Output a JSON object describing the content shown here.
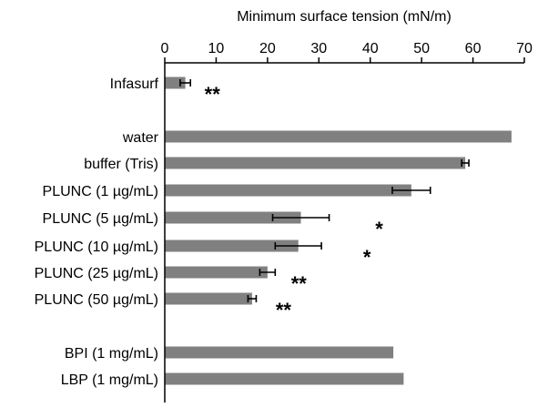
{
  "chart_data": {
    "type": "bar",
    "orientation": "horizontal",
    "xlabel": "Minimum surface tension (mN/m)",
    "xlim": [
      0,
      70
    ],
    "xticks": [
      0,
      10,
      20,
      30,
      40,
      50,
      60,
      70
    ],
    "grid": false,
    "bar_color": "#808080",
    "categories": [
      "Infasurf",
      "water",
      "buffer (Tris)",
      "PLUNC (1 µg/mL)",
      "PLUNC (5 µg/mL)",
      "PLUNC (10 µg/mL)",
      "PLUNC (25 µg/mL)",
      "PLUNC (50 µg/mL)",
      "BPI (1 mg/mL)",
      "LBP (1 mg/mL)"
    ],
    "values": [
      4,
      67.5,
      58.5,
      48,
      26.5,
      26,
      20,
      17,
      44.5,
      46.5
    ],
    "error": [
      1,
      null,
      0.7,
      3.7,
      5.5,
      4.5,
      1.5,
      0.8,
      null,
      null
    ],
    "significance": [
      "**",
      "",
      "",
      "",
      "*",
      "*",
      "**",
      "**",
      "",
      ""
    ]
  }
}
